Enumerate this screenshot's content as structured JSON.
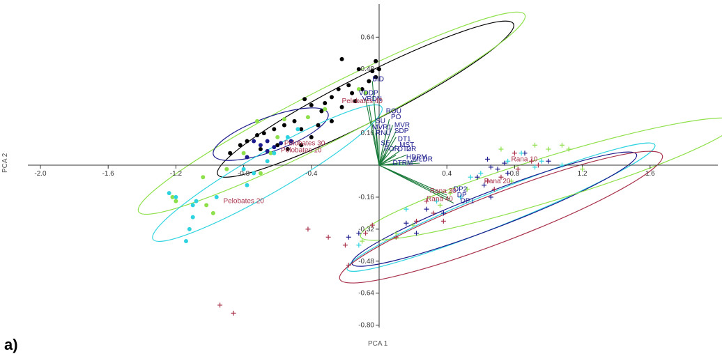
{
  "panel_label": "a)",
  "chart_data": {
    "type": "scatter",
    "title": "",
    "xlabel": "PCA 1",
    "ylabel": "PCA 2",
    "xlim": [
      -2.0,
      2.0
    ],
    "ylim": [
      -0.82,
      0.82
    ],
    "x_ticks": [
      -2.0,
      -1.6,
      -1.2,
      -0.8,
      -0.4,
      0.4,
      0.8,
      1.2,
      1.6
    ],
    "x_tick_labels": [
      "-2.0",
      "-1.6",
      "-1.2",
      "-0.8",
      "-0.4",
      "0.4",
      "0.8",
      "1.2",
      "1.6"
    ],
    "y_ticks": [
      0.64,
      0.48,
      0.16,
      -0.16,
      -0.32,
      -0.48,
      -0.64,
      -0.8
    ],
    "y_tick_labels": [
      "0.64",
      "0.48",
      "0.16",
      "-0.16",
      "-0.32",
      "-0.48",
      "-0.64",
      "-0.80"
    ],
    "grid": false,
    "colors": {
      "black": "#000000",
      "green": "#8ee04a",
      "cyan": "#2ed3e0",
      "navy": "#1a1a8c",
      "maroon": "#a8324a"
    },
    "ellipses": [
      {
        "cx": -0.08,
        "cy": 0.33,
        "rx": 0.98,
        "ry": 0.115,
        "angle": 27,
        "color": "black"
      },
      {
        "cx": -0.28,
        "cy": 0.26,
        "rx": 1.28,
        "ry": 0.13,
        "angle": 27,
        "color": "green"
      },
      {
        "cx": -0.64,
        "cy": 0.155,
        "rx": 0.36,
        "ry": 0.085,
        "angle": 20,
        "color": "navy"
      },
      {
        "cx": -0.66,
        "cy": -0.04,
        "rx": 0.78,
        "ry": 0.1,
        "angle": 30,
        "color": "cyan"
      },
      {
        "cx": 0.72,
        "cy": -0.21,
        "rx": 0.98,
        "ry": 0.085,
        "angle": 22,
        "color": "cyan"
      },
      {
        "cx": 0.68,
        "cy": -0.22,
        "rx": 0.9,
        "ry": 0.09,
        "angle": 21,
        "color": "navy"
      },
      {
        "cx": 1.0,
        "cy": -0.07,
        "rx": 1.16,
        "ry": 0.11,
        "angle": 17,
        "color": "green"
      },
      {
        "cx": 0.72,
        "cy": -0.26,
        "rx": 1.02,
        "ry": 0.12,
        "angle": 21,
        "color": "maroon"
      }
    ],
    "pelobates_points": [
      {
        "color": "black",
        "points": [
          [
            -0.22,
            0.53
          ],
          [
            -0.12,
            0.48
          ],
          [
            -0.02,
            0.52
          ],
          [
            -0.04,
            0.47
          ],
          [
            -0.02,
            0.44
          ],
          [
            0.0,
            0.48
          ],
          [
            -0.06,
            0.42
          ],
          [
            -0.1,
            0.38
          ],
          [
            -0.18,
            0.4
          ],
          [
            -0.24,
            0.38
          ],
          [
            -0.16,
            0.36
          ],
          [
            -0.28,
            0.34
          ],
          [
            -0.32,
            0.31
          ],
          [
            -0.4,
            0.3
          ],
          [
            -0.44,
            0.33
          ],
          [
            -0.34,
            0.27
          ],
          [
            -0.22,
            0.29
          ],
          [
            -0.14,
            0.32
          ],
          [
            -0.5,
            0.22
          ],
          [
            -0.46,
            0.18
          ],
          [
            -0.56,
            0.2
          ],
          [
            -0.62,
            0.18
          ],
          [
            -0.68,
            0.16
          ],
          [
            -0.72,
            0.15
          ],
          [
            -0.78,
            0.12
          ],
          [
            -0.82,
            0.1
          ],
          [
            -0.6,
            0.1
          ],
          [
            -0.54,
            0.08
          ],
          [
            -0.4,
            0.14
          ],
          [
            -0.36,
            0.2
          ],
          [
            -0.28,
            0.22
          ],
          [
            -0.46,
            0.1
          ],
          [
            -0.7,
            0.08
          ],
          [
            -0.88,
            0.06
          ]
        ]
      },
      {
        "color": "green",
        "points": [
          [
            -0.08,
            0.36
          ],
          [
            -0.12,
            0.38
          ],
          [
            -0.32,
            0.28
          ],
          [
            -0.42,
            0.24
          ],
          [
            -0.56,
            0.23
          ],
          [
            -0.72,
            0.22
          ],
          [
            -0.6,
            0.14
          ],
          [
            -0.64,
            0.06
          ],
          [
            -0.8,
            0.06
          ],
          [
            -0.9,
            -0.02
          ],
          [
            -0.7,
            -0.04
          ],
          [
            -1.04,
            -0.06
          ],
          [
            -1.22,
            -0.16
          ],
          [
            -1.02,
            -0.2
          ],
          [
            -0.98,
            -0.24
          ],
          [
            -1.2,
            -0.18
          ]
        ]
      },
      {
        "color": "cyan",
        "points": [
          [
            -0.54,
            0.14
          ],
          [
            -0.48,
            0.18
          ],
          [
            -0.62,
            0.06
          ],
          [
            -0.66,
            0.02
          ],
          [
            -0.74,
            -0.04
          ],
          [
            -0.78,
            -0.1
          ],
          [
            -0.8,
            -0.02
          ],
          [
            -0.96,
            -0.16
          ],
          [
            -1.1,
            -0.2
          ],
          [
            -1.1,
            -0.26
          ],
          [
            -1.12,
            -0.32
          ],
          [
            -1.14,
            -0.38
          ],
          [
            -1.2,
            -0.16
          ],
          [
            -1.24,
            -0.14
          ],
          [
            -1.08,
            -0.18
          ]
        ]
      },
      {
        "color": "navy",
        "points": [
          [
            -0.58,
            0.11
          ],
          [
            -0.62,
            0.09
          ],
          [
            -0.66,
            0.12
          ],
          [
            -0.7,
            0.1
          ],
          [
            -0.74,
            0.12
          ],
          [
            -0.78,
            0.04
          ],
          [
            -0.66,
            0.07
          ],
          [
            -0.52,
            0.12
          ]
        ]
      }
    ],
    "rana_points": [
      {
        "color": "navy",
        "points": [
          [
            0.64,
            0.03
          ],
          [
            0.66,
            -0.01
          ],
          [
            0.7,
            -0.02
          ],
          [
            0.74,
            0.01
          ],
          [
            0.76,
            -0.04
          ],
          [
            0.58,
            -0.06
          ],
          [
            0.62,
            -0.1
          ],
          [
            0.66,
            -0.16
          ],
          [
            0.28,
            -0.22
          ],
          [
            0.16,
            -0.29
          ],
          [
            0.38,
            -0.24
          ],
          [
            0.22,
            -0.34
          ],
          [
            0.86,
            0.06
          ],
          [
            1.0,
            0.02
          ],
          [
            -0.12,
            -0.34
          ],
          [
            -0.18,
            -0.36
          ]
        ]
      },
      {
        "color": "maroon",
        "points": [
          [
            0.8,
            0.06
          ],
          [
            0.9,
            0.02
          ],
          [
            0.82,
            -0.02
          ],
          [
            0.94,
            0.0
          ],
          [
            0.72,
            -0.06
          ],
          [
            0.68,
            -0.12
          ],
          [
            0.64,
            -0.08
          ],
          [
            0.32,
            -0.24
          ],
          [
            0.28,
            -0.18
          ],
          [
            0.38,
            -0.28
          ],
          [
            0.22,
            -0.28
          ],
          [
            -0.04,
            -0.3
          ],
          [
            -0.08,
            -0.34
          ],
          [
            -0.2,
            -0.4
          ],
          [
            -0.42,
            -0.32
          ],
          [
            -0.3,
            -0.36
          ],
          [
            -0.94,
            -0.7
          ],
          [
            -0.86,
            -0.74
          ],
          [
            -0.18,
            -0.5
          ],
          [
            0.1,
            -0.36
          ]
        ]
      },
      {
        "color": "cyan",
        "points": [
          [
            0.76,
            0.02
          ],
          [
            0.84,
            0.06
          ],
          [
            0.92,
            -0.01
          ],
          [
            0.96,
            0.02
          ],
          [
            0.6,
            -0.04
          ],
          [
            0.54,
            -0.06
          ],
          [
            0.48,
            -0.16
          ],
          [
            0.34,
            -0.18
          ],
          [
            0.16,
            -0.22
          ],
          [
            -0.12,
            -0.4
          ],
          [
            1.08,
            0.0
          ]
        ]
      },
      {
        "color": "green",
        "points": [
          [
            0.92,
            0.1
          ],
          [
            1.0,
            0.08
          ],
          [
            1.08,
            0.1
          ],
          [
            1.12,
            0.08
          ],
          [
            1.2,
            -0.02
          ],
          [
            0.72,
            0.08
          ],
          [
            0.78,
            -0.08
          ],
          [
            0.52,
            -0.12
          ],
          [
            0.42,
            -0.14
          ],
          [
            0.36,
            -0.2
          ],
          [
            0.2,
            -0.3
          ],
          [
            0.1,
            -0.34
          ],
          [
            -0.1,
            -0.38
          ]
        ]
      }
    ],
    "vectors": [
      {
        "label": "BID",
        "x": -0.04,
        "y": 0.42
      },
      {
        "label": "VDDP",
        "x": -0.08,
        "y": 0.33
      },
      {
        "label": "VRDN",
        "x": -0.06,
        "y": 0.3
      },
      {
        "label": "ROU",
        "x": 0.06,
        "y": 0.23
      },
      {
        "label": "PO",
        "x": 0.08,
        "y": 0.2
      },
      {
        "label": "SU",
        "x": -0.02,
        "y": 0.19
      },
      {
        "label": "MVR1",
        "x": -0.02,
        "y": 0.16
      },
      {
        "label": "MVR",
        "x": 0.1,
        "y": 0.17
      },
      {
        "label": "SDP",
        "x": 0.1,
        "y": 0.14
      },
      {
        "label": "RNU",
        "x": 0.0,
        "y": 0.13
      },
      {
        "label": "DT1",
        "x": 0.1,
        "y": 0.1
      },
      {
        "label": "MST",
        "x": 0.12,
        "y": 0.07
      },
      {
        "label": "SE",
        "x": 0.02,
        "y": 0.08
      },
      {
        "label": "DT2",
        "x": 0.1,
        "y": 0.05
      },
      {
        "label": "DR",
        "x": 0.16,
        "y": 0.05
      },
      {
        "label": "POR",
        "x": 0.04,
        "y": 0.05
      },
      {
        "label": "HDRM",
        "x": 0.22,
        "y": 0.02
      },
      {
        "label": "MLDR",
        "x": 0.24,
        "y": 0.01
      },
      {
        "label": "DTRM",
        "x": 0.16,
        "y": 0.0
      },
      {
        "label": "DP2",
        "x": 0.4,
        "y": -0.15
      },
      {
        "label": "DP",
        "x": 0.42,
        "y": -0.17
      },
      {
        "label": "DP1",
        "x": 0.44,
        "y": -0.19
      }
    ],
    "vector_labels": [
      {
        "label": "BID",
        "x": -0.04,
        "y": 0.42
      },
      {
        "label": "VDDP",
        "x": -0.12,
        "y": 0.35
      },
      {
        "label": "VRDN",
        "x": -0.1,
        "y": 0.32
      },
      {
        "label": "ROU",
        "x": 0.04,
        "y": 0.26
      },
      {
        "label": "PO",
        "x": 0.07,
        "y": 0.23
      },
      {
        "label": "SU",
        "x": -0.02,
        "y": 0.21
      },
      {
        "label": "MVR1",
        "x": -0.04,
        "y": 0.18
      },
      {
        "label": "MVR",
        "x": 0.09,
        "y": 0.19
      },
      {
        "label": "SDP",
        "x": 0.09,
        "y": 0.16
      },
      {
        "label": "RNU",
        "x": -0.02,
        "y": 0.15
      },
      {
        "label": "DT1",
        "x": 0.11,
        "y": 0.12
      },
      {
        "label": "MST",
        "x": 0.12,
        "y": 0.09
      },
      {
        "label": "SE",
        "x": 0.01,
        "y": 0.1
      },
      {
        "label": "DT2",
        "x": 0.11,
        "y": 0.07
      },
      {
        "label": "DR",
        "x": 0.16,
        "y": 0.07
      },
      {
        "label": "POR",
        "x": 0.03,
        "y": 0.07
      },
      {
        "label": "HDRM",
        "x": 0.16,
        "y": 0.03
      },
      {
        "label": "MLDR",
        "x": 0.2,
        "y": 0.02
      },
      {
        "label": "DTRM",
        "x": 0.08,
        "y": 0.0
      },
      {
        "label": "DP2",
        "x": 0.44,
        "y": -0.13
      },
      {
        "label": "DP",
        "x": 0.46,
        "y": -0.16
      },
      {
        "label": "DP1",
        "x": 0.48,
        "y": -0.19
      }
    ],
    "group_labels": [
      {
        "label": "Pelobates 40",
        "x": -0.22,
        "y": 0.31
      },
      {
        "label": "Pelobates 30",
        "x": -0.56,
        "y": 0.1
      },
      {
        "label": "Pelobates 10",
        "x": -0.58,
        "y": 0.065
      },
      {
        "label": "Pelobates 20",
        "x": -0.92,
        "y": -0.19
      },
      {
        "label": "Rana 10",
        "x": 0.78,
        "y": 0.02
      },
      {
        "label": "Rana 20",
        "x": 0.62,
        "y": -0.09
      },
      {
        "label": "Rana 30",
        "x": 0.3,
        "y": -0.14
      },
      {
        "label": "Rana 40",
        "x": 0.28,
        "y": -0.18
      }
    ]
  }
}
